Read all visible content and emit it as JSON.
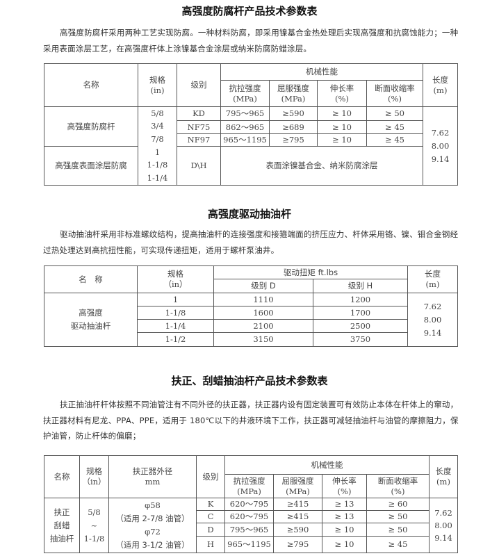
{
  "section1": {
    "title": "高强度防腐杆产品技术参数表",
    "paragraph": "高强度防腐杆采用两种工艺实现防腐。一种材料防腐，即采用镍基合金热处理后实现高强度和抗腐蚀能力；一种采用表面涂层工艺，在高强度杆体上涂镍基合金涂层或纳米防腐防蜡涂层。",
    "table": {
      "headers": {
        "name": "名称",
        "spec": "规格",
        "spec_unit": "(in)",
        "grade": "级别",
        "mech": "机械性能",
        "tensile": "抗拉强度",
        "tensile_unit": "(MPa)",
        "yield": "屈服强度",
        "yield_unit": "(MPa)",
        "elong": "伸长率",
        "elong_unit": "(%)",
        "reduction": "断面收缩率",
        "reduction_unit": "(%)",
        "length": "长度",
        "length_unit": "(m)"
      },
      "specs": [
        "5/8",
        "3/4",
        "7/8",
        "1",
        "1-1/8",
        "1-1/4"
      ],
      "lengths": [
        "7.62",
        "8.00",
        "9.14"
      ],
      "product1": "高强度防腐杆",
      "rows": [
        {
          "grade": "KD",
          "tensile": "795～965",
          "yield": "≥590",
          "elong": "≥ 10",
          "reduction": "≥ 50"
        },
        {
          "grade": "NF75",
          "tensile": "862～965",
          "yield": "≥689",
          "elong": "≥ 10",
          "reduction": "≥ 45"
        },
        {
          "grade": "NF97",
          "tensile": "965～1195",
          "yield": "≥795",
          "elong": "≥ 10",
          "reduction": "≥ 45"
        }
      ],
      "product2": "高强度表面涂层防腐",
      "product2_grade": "D\\H",
      "product2_note": "表面涂镍基合金、纳米防腐涂层"
    }
  },
  "section2": {
    "title": "高强度驱动抽油杆",
    "paragraph": "驱动抽油杆采用非标准螺纹结构，提高抽油杆的连接强度和接箍端面的挤压应力、杆体采用铬、镍、钼合金钢经过热处理达到高抗扭性能，可实现传递扭矩，适用于螺杆泵油井。",
    "table": {
      "headers": {
        "name": "名　称",
        "spec": "规格",
        "spec_unit": "（in）",
        "torque": "驱动扭矩 ft.lbs",
        "grade_d": "级别 D",
        "grade_h": "级别 H",
        "length": "长度",
        "length_unit": "(m)"
      },
      "product_line1": "高强度",
      "product_line2": "驱动抽油杆",
      "lengths": [
        "7.62",
        "8.00",
        "9.14"
      ],
      "rows": [
        {
          "spec": "1",
          "d": "1110",
          "h": "1200"
        },
        {
          "spec": "1-1/8",
          "d": "1600",
          "h": "1700"
        },
        {
          "spec": "1-1/4",
          "d": "2100",
          "h": "2500"
        },
        {
          "spec": "1-1/2",
          "d": "3150",
          "h": "3750"
        }
      ]
    }
  },
  "section3": {
    "title": "扶正、刮蜡抽油杆产品技术参数表",
    "paragraph": "扶正抽油杆杆体按照不同油管注有不同外径的扶正器，扶正器内设有固定装置可有效防止本体在杆体上的窜动，扶正器材料有尼龙、PPA、PPE，适用于 180℃以下的井液环境下工作，扶正器可减轻抽油杆与油管的摩擦阻力，保护油管，防止杆体的偏磨；",
    "table": {
      "headers": {
        "name": "名称",
        "spec": "规格",
        "spec_unit": "（in）",
        "diameter": "扶正器外径",
        "diameter_unit": "mm",
        "grade": "级别",
        "mech": "机械性能",
        "tensile": "抗拉强度",
        "tensile_unit": "(MPa)",
        "yield": "屈服强度",
        "yield_unit": "(MPa)",
        "elong": "伸长率",
        "elong_unit": "(%)",
        "reduction": "断面收缩率",
        "reduction_unit": "(%)",
        "length": "长度",
        "length_unit": "(m)"
      },
      "product": [
        "扶正",
        "刮蜡",
        "抽油杆"
      ],
      "specs": [
        "5/8",
        "~",
        "1-1/8"
      ],
      "diameters": [
        "φ58",
        "（适用 2-7/8 油管）",
        "φ72",
        "（适用 3-1/2 油管）"
      ],
      "lengths": [
        "7.62",
        "8.00",
        "9.14"
      ],
      "rows": [
        {
          "grade": "K",
          "tensile": "620～795",
          "yield": "≥415",
          "elong": "≥ 13",
          "reduction": "≥ 60"
        },
        {
          "grade": "C",
          "tensile": "620～795",
          "yield": "≥415",
          "elong": "≥ 13",
          "reduction": "≥ 50"
        },
        {
          "grade": "D",
          "tensile": "795～965",
          "yield": "≥590",
          "elong": "≥ 10",
          "reduction": "≥ 50"
        },
        {
          "grade": "H",
          "tensile": "965～1195",
          "yield": "≥795",
          "elong": "≥ 10",
          "reduction": "≥ 45"
        }
      ]
    }
  }
}
